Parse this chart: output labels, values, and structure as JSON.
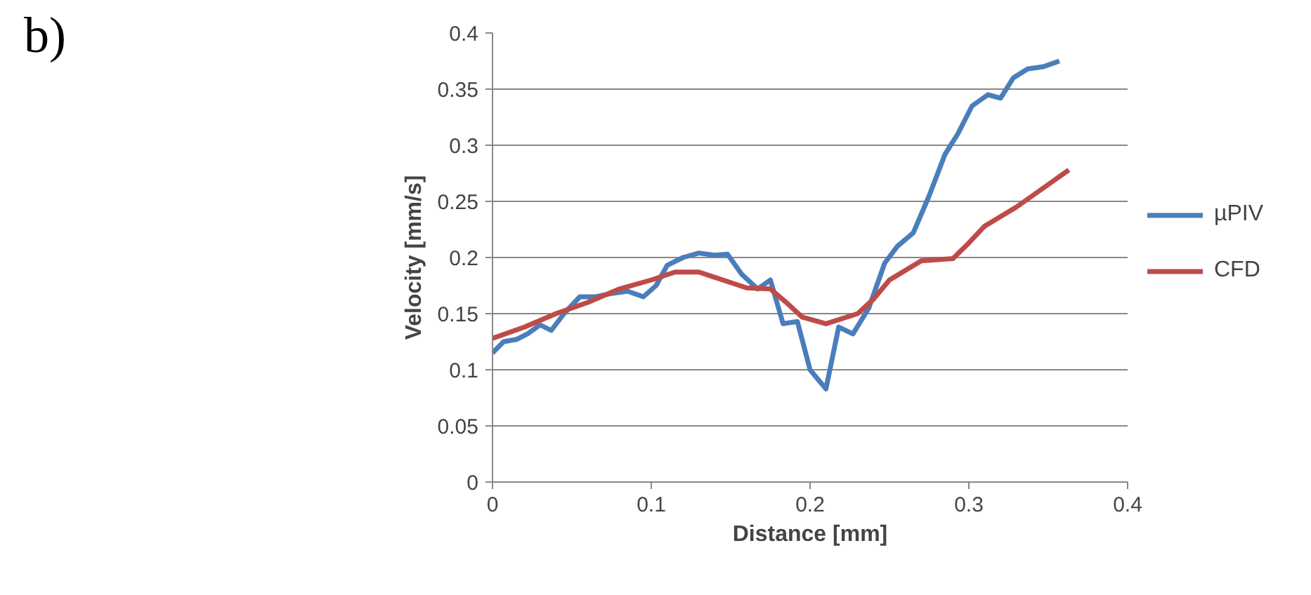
{
  "chart_data": {
    "type": "line",
    "xlabel": "Distance [mm]",
    "ylabel": "Velocity [mm/s]",
    "annotations": [
      "b)"
    ],
    "xlim": [
      0,
      0.4
    ],
    "xticks": [
      0,
      0.1,
      0.2,
      0.3,
      0.4
    ],
    "ylim": [
      0,
      0.4
    ],
    "yticks": [
      0,
      0.05,
      0.1,
      0.15,
      0.2,
      0.25,
      0.3,
      0.35,
      0.4
    ],
    "grid": "y",
    "legend": "right",
    "marker": "none",
    "line_style": "solid",
    "series": [
      {
        "name": "µPIV",
        "color": "#4a7ebb",
        "x": [
          0,
          0.007,
          0.015,
          0.022,
          0.03,
          0.037,
          0.045,
          0.055,
          0.065,
          0.075,
          0.085,
          0.095,
          0.103,
          0.11,
          0.12,
          0.13,
          0.14,
          0.148,
          0.157,
          0.167,
          0.175,
          0.183,
          0.192,
          0.2,
          0.21,
          0.218,
          0.227,
          0.237,
          0.247,
          0.255,
          0.265,
          0.275,
          0.285,
          0.293,
          0.302,
          0.312,
          0.32,
          0.328,
          0.337,
          0.347,
          0.357
        ],
        "values": [
          0.115,
          0.125,
          0.127,
          0.132,
          0.14,
          0.135,
          0.15,
          0.165,
          0.165,
          0.168,
          0.17,
          0.165,
          0.175,
          0.193,
          0.2,
          0.204,
          0.202,
          0.203,
          0.185,
          0.172,
          0.18,
          0.141,
          0.143,
          0.1,
          0.083,
          0.138,
          0.132,
          0.155,
          0.195,
          0.21,
          0.222,
          0.255,
          0.292,
          0.31,
          0.335,
          0.345,
          0.342,
          0.36,
          0.368,
          0.37,
          0.375
        ]
      },
      {
        "name": "CFD",
        "color": "#be4b48",
        "x": [
          0,
          0.02,
          0.04,
          0.06,
          0.08,
          0.1,
          0.115,
          0.13,
          0.145,
          0.16,
          0.175,
          0.185,
          0.195,
          0.21,
          0.23,
          0.24,
          0.25,
          0.27,
          0.29,
          0.3,
          0.31,
          0.33,
          0.35,
          0.363
        ],
        "values": [
          0.128,
          0.138,
          0.15,
          0.16,
          0.172,
          0.18,
          0.187,
          0.187,
          0.18,
          0.173,
          0.172,
          0.16,
          0.147,
          0.141,
          0.15,
          0.163,
          0.18,
          0.197,
          0.199,
          0.213,
          0.228,
          0.245,
          0.265,
          0.278
        ]
      }
    ]
  }
}
